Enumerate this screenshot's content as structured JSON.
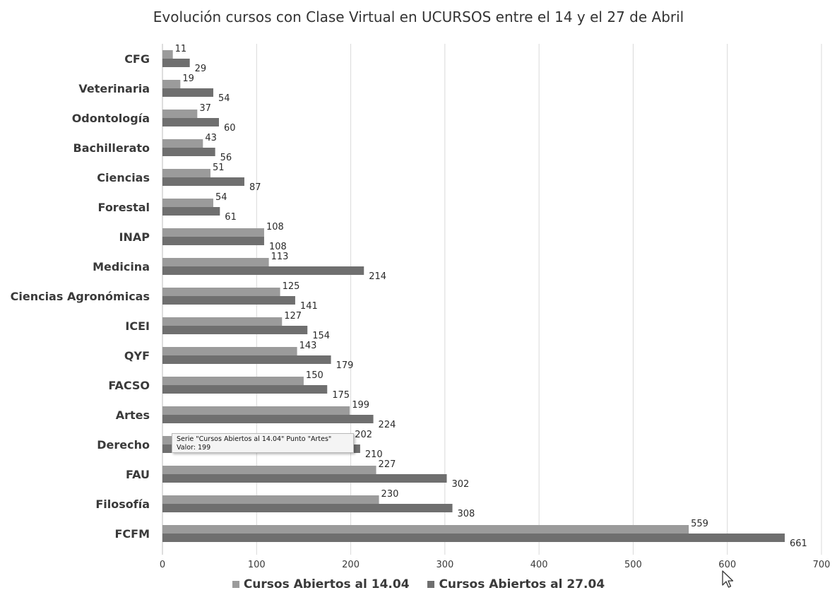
{
  "chart_data": {
    "type": "bar",
    "orientation": "horizontal",
    "title": "Evolución cursos con Clase Virtual en UCURSOS entre el 14 y el 27 de Abril",
    "categories": [
      "CFG",
      "Veterinaria",
      "Odontología",
      "Bachillerato",
      "Ciencias",
      "Forestal",
      "INAP",
      "Medicina",
      "Ciencias Agronómicas",
      "ICEI",
      "QYF",
      "FACSO",
      "Artes",
      "Derecho",
      "FAU",
      "Filosofía",
      "FCFM"
    ],
    "series": [
      {
        "name": "Cursos Abiertos al 14.04",
        "color": "#9b9b9b",
        "values": [
          11,
          19,
          37,
          43,
          51,
          54,
          108,
          113,
          125,
          127,
          143,
          150,
          199,
          202,
          227,
          230,
          559
        ]
      },
      {
        "name": "Cursos Abiertos al 27.04",
        "color": "#6f6f6f",
        "values": [
          29,
          54,
          60,
          56,
          87,
          61,
          108,
          214,
          141,
          154,
          179,
          175,
          224,
          210,
          302,
          308,
          661
        ]
      }
    ],
    "xlim": [
      0,
      700
    ],
    "xticks": [
      0,
      100,
      200,
      300,
      400,
      500,
      600,
      700
    ],
    "grid": true,
    "legend_position": "bottom"
  },
  "tooltip": {
    "line1": "Serie \"Cursos Abiertos al 14.04\" Punto \"Artes\"",
    "line2": "Valor: 199"
  },
  "icons": {
    "cursor": "mouse-pointer-icon"
  }
}
